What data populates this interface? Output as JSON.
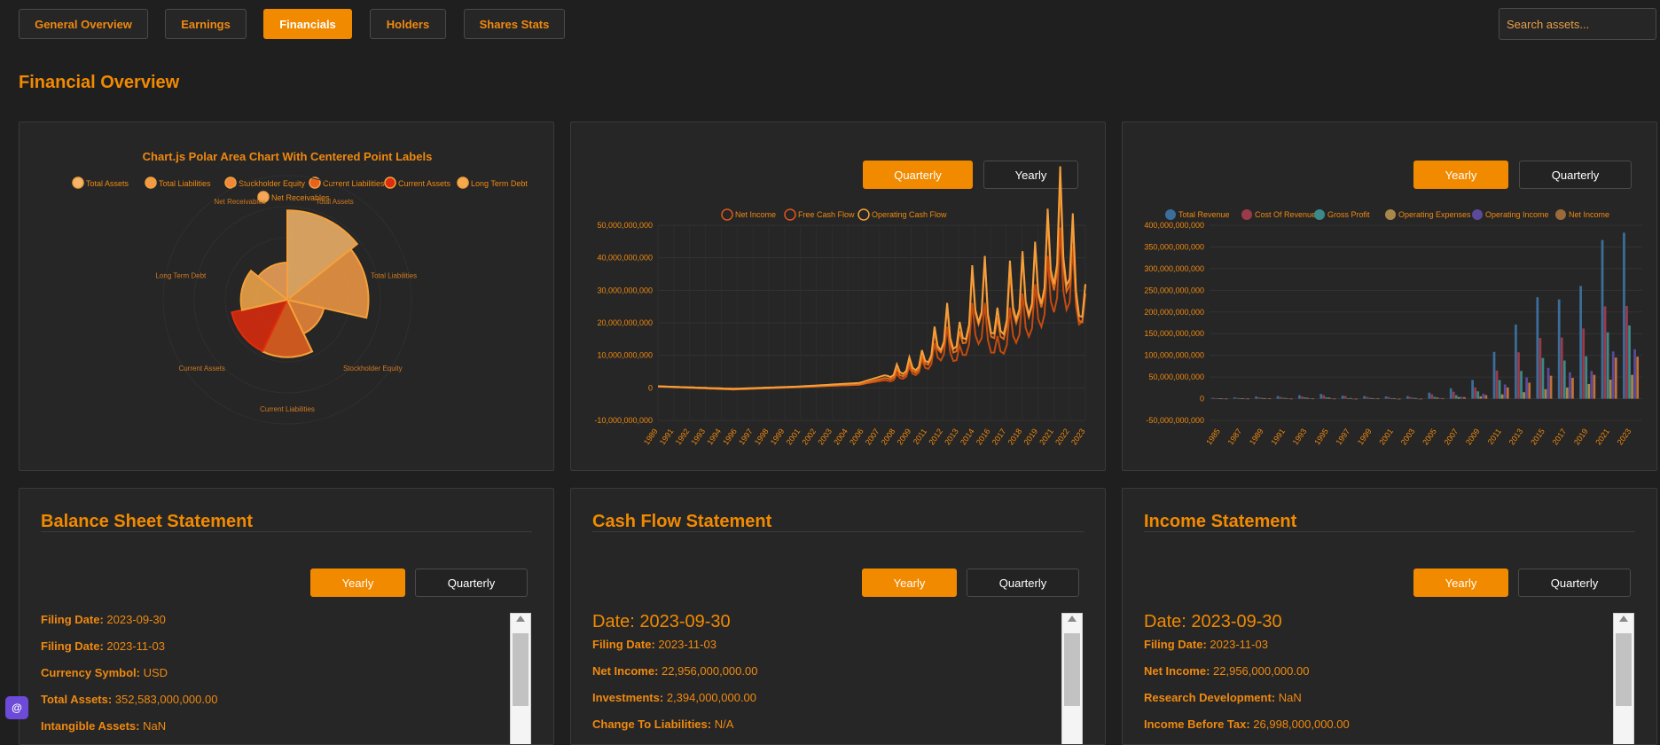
{
  "nav": {
    "tabs": [
      {
        "label": "General Overview"
      },
      {
        "label": "Earnings"
      },
      {
        "label": "Financials",
        "active": true
      },
      {
        "label": "Holders"
      },
      {
        "label": "Shares Stats"
      }
    ],
    "search_placeholder": "Search assets..."
  },
  "page_title": "Financial Overview",
  "polar": {
    "title": "Chart.js Polar Area Chart With Centered Point Labels",
    "legend": [
      "Total Assets",
      "Total Liabilities",
      "Stockholder Equity",
      "Current Liabilities",
      "Current Assets",
      "Long Term Debt",
      "Net Receivables"
    ],
    "labels": [
      "Total Assets",
      "Total Liabilities",
      "Stockholder Equity",
      "Current Liabilities",
      "Current Assets",
      "Long Term Debt",
      "Net Receivables"
    ],
    "colors": [
      "#f5b56b",
      "#f39a45",
      "#f0883a",
      "#e8621e",
      "#e02c0c",
      "#f5a94a",
      "#f5a65a"
    ]
  },
  "cashflow_chart": {
    "buttons": [
      "Quarterly",
      "Yearly"
    ],
    "legend": [
      "Net Income",
      "Free Cash Flow",
      "Operating Cash Flow"
    ],
    "y_ticks": [
      "50,000,000,000",
      "40,000,000,000",
      "30,000,000,000",
      "20,000,000,000",
      "10,000,000,000",
      "0",
      "-10,000,000,000"
    ],
    "x_ticks": [
      "1989",
      "1991",
      "1992",
      "1993",
      "1994",
      "1996",
      "1997",
      "1998",
      "1999",
      "2001",
      "2002",
      "2003",
      "2004",
      "2006",
      "2007",
      "2008",
      "2009",
      "2011",
      "2012",
      "2013",
      "2014",
      "2016",
      "2017",
      "2018",
      "2019",
      "2021",
      "2022",
      "2023"
    ]
  },
  "income_chart": {
    "buttons": [
      "Yearly",
      "Quarterly"
    ],
    "legend": [
      "Total Revenue",
      "Cost Of Revenue",
      "Gross Profit",
      "Operating Expenses",
      "Operating Income",
      "Net Income"
    ],
    "legend_colors": [
      "#3b6e9a",
      "#9a3b4a",
      "#3b8a8a",
      "#a8884a",
      "#5a4a9a",
      "#9a6a3a"
    ],
    "y_ticks": [
      "400,000,000,000",
      "350,000,000,000",
      "300,000,000,000",
      "250,000,000,000",
      "200,000,000,000",
      "150,000,000,000",
      "100,000,000,000",
      "50,000,000,000",
      "0",
      "-50,000,000,000"
    ],
    "x_ticks": [
      "1985",
      "1987",
      "1989",
      "1991",
      "1993",
      "1995",
      "1997",
      "1999",
      "2001",
      "2003",
      "2005",
      "2007",
      "2009",
      "2011",
      "2013",
      "2015",
      "2017",
      "2019",
      "2021",
      "2023"
    ]
  },
  "chart_data": [
    {
      "type": "pie",
      "variant": "polar-area",
      "title": "Chart.js Polar Area Chart With Centered Point Labels",
      "categories": [
        "Total Assets",
        "Total Liabilities",
        "Stockholder Equity",
        "Current Liabilities",
        "Current Assets",
        "Long Term Debt",
        "Net Receivables"
      ],
      "values": [
        352583000000,
        290437000000,
        62146000000,
        145308000000,
        143566000000,
        95281000000,
        60985000000
      ],
      "legend": "top"
    },
    {
      "type": "line",
      "title": "",
      "series": [
        {
          "name": "Net Income",
          "points": [
            [
              "1989",
              0.5
            ],
            [
              "1995",
              -0.3
            ],
            [
              "2000",
              0.3
            ],
            [
              "2005",
              1
            ],
            [
              "2008",
              3
            ],
            [
              "2010",
              6
            ],
            [
              "2012",
              13
            ],
            [
              "2013",
              9
            ],
            [
              "2014",
              18
            ],
            [
              "2015",
              18
            ],
            [
              "2016",
              11
            ],
            [
              "2017",
              17
            ],
            [
              "2018",
              20
            ],
            [
              "2019",
              22
            ],
            [
              "2020",
              28
            ],
            [
              "2021",
              34
            ],
            [
              "2022",
              30
            ],
            [
              "2023",
              22
            ]
          ]
        },
        {
          "name": "Free Cash Flow",
          "points": [
            [
              "1989",
              0.4
            ],
            [
              "1995",
              -0.5
            ],
            [
              "2000",
              0.2
            ],
            [
              "2005",
              1
            ],
            [
              "2008",
              4
            ],
            [
              "2010",
              7
            ],
            [
              "2012",
              17
            ],
            [
              "2013",
              12
            ],
            [
              "2014",
              25
            ],
            [
              "2015",
              27
            ],
            [
              "2016",
              15
            ],
            [
              "2017",
              25
            ],
            [
              "2018",
              28
            ],
            [
              "2019",
              30
            ],
            [
              "2020",
              36
            ],
            [
              "2021",
              44
            ],
            [
              "2022",
              35
            ],
            [
              "2023",
              20
            ]
          ]
        },
        {
          "name": "Operating Cash Flow",
          "points": [
            [
              "1989",
              0.5
            ],
            [
              "1995",
              -0.3
            ],
            [
              "2000",
              0.4
            ],
            [
              "2005",
              1.5
            ],
            [
              "2008",
              5
            ],
            [
              "2010",
              8
            ],
            [
              "2012",
              18
            ],
            [
              "2013",
              14
            ],
            [
              "2014",
              26
            ],
            [
              "2015",
              28
            ],
            [
              "2016",
              17
            ],
            [
              "2017",
              27
            ],
            [
              "2018",
              29
            ],
            [
              "2019",
              31
            ],
            [
              "2020",
              38
            ],
            [
              "2021",
              47
            ],
            [
              "2022",
              37
            ],
            [
              "2023",
              22
            ]
          ]
        }
      ],
      "y_unit": "billions",
      "ylim": [
        -10,
        50
      ],
      "grid": true,
      "legend": "top"
    },
    {
      "type": "bar",
      "title": "",
      "categories": [
        "1985",
        "1987",
        "1989",
        "1991",
        "1993",
        "1995",
        "1997",
        "1999",
        "2001",
        "2003",
        "2005",
        "2007",
        "2009",
        "2011",
        "2013",
        "2015",
        "2017",
        "2019",
        "2021",
        "2023"
      ],
      "series": [
        {
          "name": "Total Revenue",
          "values": [
            2,
            3,
            5,
            6,
            8,
            11,
            7,
            6,
            5,
            6,
            14,
            24,
            43,
            108,
            171,
            234,
            229,
            260,
            366,
            383
          ]
        },
        {
          "name": "Cost Of Revenue",
          "values": [
            1,
            2,
            3,
            4,
            5,
            8,
            6,
            4,
            4,
            4,
            10,
            16,
            26,
            65,
            107,
            140,
            141,
            162,
            213,
            214
          ]
        },
        {
          "name": "Gross Profit",
          "values": [
            1,
            1,
            2,
            2,
            3,
            3,
            1,
            2,
            1,
            2,
            4,
            8,
            17,
            43,
            64,
            94,
            88,
            98,
            153,
            169
          ]
        },
        {
          "name": "Operating Expenses",
          "values": [
            0.6,
            0.8,
            1,
            1.5,
            2,
            2.5,
            1.5,
            1.3,
            1.2,
            1.5,
            2.5,
            3.7,
            5.5,
            10,
            15,
            22,
            26,
            34,
            44,
            55
          ]
        },
        {
          "name": "Operating Income",
          "values": [
            0.4,
            0.4,
            1,
            0.5,
            1,
            0.5,
            -0.5,
            0.6,
            -0.3,
            0.1,
            1.6,
            4.4,
            11.7,
            33,
            49,
            71,
            61,
            64,
            109,
            114
          ]
        },
        {
          "name": "Net Income",
          "values": [
            0.3,
            0.3,
            0.6,
            0.3,
            0.5,
            0.4,
            -1,
            0.6,
            -0.1,
            0.1,
            1.3,
            3.5,
            8.2,
            26,
            37,
            53,
            48,
            55,
            95,
            97
          ]
        }
      ],
      "y_unit": "billions",
      "ylim": [
        -50,
        400
      ],
      "grid": true,
      "legend": "top"
    }
  ],
  "balance_sheet": {
    "title": "Balance Sheet Statement",
    "buttons": [
      "Yearly",
      "Quarterly"
    ],
    "rows": [
      {
        "label": "Filing Date:",
        "value": " 2023-09-30"
      },
      {
        "label": "Filing Date:",
        "value": " 2023-11-03"
      },
      {
        "label": "Currency Symbol:",
        "value": " USD"
      },
      {
        "label": "Total Assets:",
        "value": " 352,583,000,000.00"
      },
      {
        "label": "Intangible Assets:",
        "value": " NaN"
      }
    ]
  },
  "cash_flow": {
    "title": "Cash Flow Statement",
    "buttons": [
      "Yearly",
      "Quarterly"
    ],
    "date": "Date: 2023-09-30",
    "rows": [
      {
        "label": "Filing Date:",
        "value": " 2023-11-03"
      },
      {
        "label": "Net Income:",
        "value": " 22,956,000,000.00"
      },
      {
        "label": "Investments:",
        "value": " 2,394,000,000.00"
      },
      {
        "label": "Change To Liabilities:",
        "value": " N/A"
      }
    ]
  },
  "income": {
    "title": "Income Statement",
    "buttons": [
      "Yearly",
      "Quarterly"
    ],
    "date": "Date: 2023-09-30",
    "rows": [
      {
        "label": "Filing Date:",
        "value": " 2023-11-03"
      },
      {
        "label": "Net Income:",
        "value": " 22,956,000,000.00"
      },
      {
        "label": "Research Development:",
        "value": " NaN"
      },
      {
        "label": "Income Before Tax:",
        "value": " 26,998,000,000.00"
      }
    ]
  },
  "chat_icon_glyph": "@"
}
